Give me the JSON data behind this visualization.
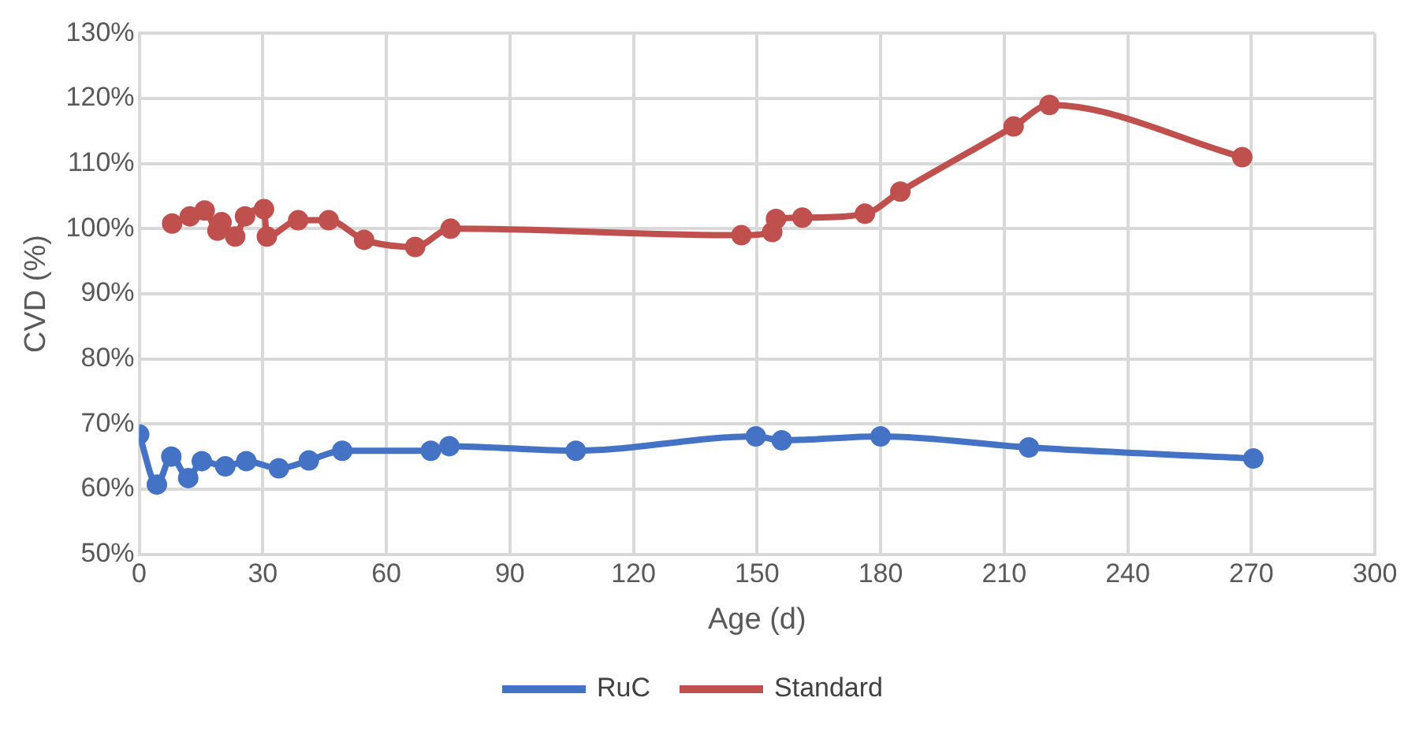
{
  "chart_data": {
    "type": "line",
    "xlabel": "Age (d)",
    "ylabel": "CVD (%)",
    "xlim": [
      0,
      300
    ],
    "xticks": [
      0,
      30,
      60,
      90,
      120,
      150,
      180,
      210,
      240,
      270,
      300
    ],
    "ylim": [
      50,
      130
    ],
    "yticks": [
      {
        "value": 50,
        "label": "50%"
      },
      {
        "value": 60,
        "label": "60%"
      },
      {
        "value": 70,
        "label": "70%"
      },
      {
        "value": 80,
        "label": "80%"
      },
      {
        "value": 90,
        "label": "90%"
      },
      {
        "value": 100,
        "label": "100%"
      },
      {
        "value": 110,
        "label": "110%"
      },
      {
        "value": 120,
        "label": "120%"
      },
      {
        "value": 130,
        "label": "130%"
      }
    ],
    "grid": true,
    "legend": "bottom",
    "marker": "circle",
    "line_style": "solid",
    "series": [
      {
        "name": "RuC",
        "color": "#4472c4",
        "x": [
          0,
          4.3,
          7.8,
          11.9,
          15.2,
          20.9,
          26,
          33.9,
          41.2,
          49.3,
          70.8,
          75.3,
          106,
          149.7,
          156,
          180,
          216,
          270.5
        ],
        "values": [
          68.4,
          60.7,
          65,
          61.7,
          64.3,
          63.5,
          64.3,
          63.2,
          64.4,
          65.9,
          65.9,
          66.6,
          65.9,
          68.1,
          67.5,
          68.1,
          66.4,
          64.7
        ]
      },
      {
        "name": "Standard",
        "color": "#c0504d",
        "x": [
          8,
          12.3,
          15.9,
          19,
          20,
          23.3,
          25.7,
          30.3,
          31,
          38.6,
          46,
          54.6,
          67,
          75.6,
          146.2,
          153.7,
          154.6,
          161,
          176.2,
          184.8,
          212.3,
          221,
          267.8
        ],
        "values": [
          100.8,
          101.9,
          102.8,
          99.7,
          101,
          98.8,
          101.9,
          103,
          98.8,
          101.3,
          101.3,
          98.3,
          97.2,
          100,
          99,
          99.5,
          101.5,
          101.7,
          102.3,
          105.7,
          115.7,
          119,
          111
        ]
      }
    ]
  }
}
